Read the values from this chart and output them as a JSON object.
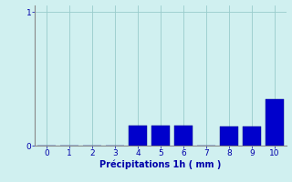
{
  "categories": [
    0,
    1,
    2,
    3,
    4,
    5,
    6,
    7,
    8,
    9,
    10
  ],
  "values": [
    0,
    0,
    0,
    0,
    0.15,
    0.15,
    0.15,
    0,
    0.14,
    0.14,
    0.35
  ],
  "bar_color": "#0000cc",
  "background_color": "#cceeff",
  "plot_bg_color": "#d8f8f8",
  "xlabel": "Précipitations 1h ( mm )",
  "xlim": [
    -0.5,
    10.5
  ],
  "ylim": [
    0,
    1.05
  ],
  "yticks": [
    0,
    1
  ],
  "xticks": [
    0,
    1,
    2,
    3,
    4,
    5,
    6,
    7,
    8,
    9,
    10
  ],
  "bar_width": 0.8,
  "grid_color": "#99cccc",
  "xlabel_fontsize": 7,
  "tick_fontsize": 6.5,
  "tick_color": "#0000aa",
  "label_color": "#0000aa",
  "spine_color": "#888888"
}
